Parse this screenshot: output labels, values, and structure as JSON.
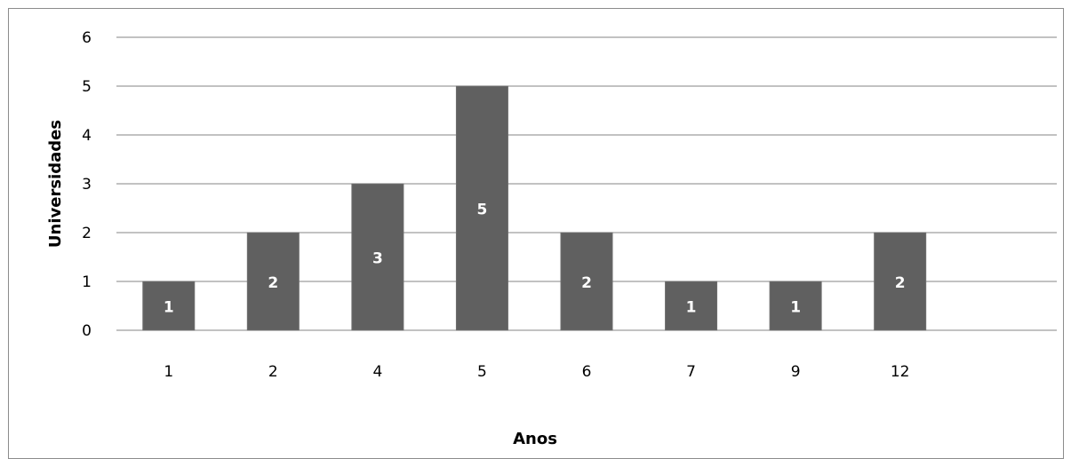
{
  "chart_data": {
    "type": "bar",
    "categories": [
      "1",
      "2",
      "4",
      "5",
      "6",
      "7",
      "9",
      "12"
    ],
    "values": [
      1,
      2,
      3,
      5,
      2,
      1,
      1,
      2
    ],
    "data_labels": [
      "1",
      "2",
      "3",
      "5",
      "2",
      "1",
      "1",
      "2"
    ],
    "title": "",
    "xlabel": "Anos",
    "ylabel": "Universidades",
    "ylim": [
      0,
      6
    ],
    "y_ticks": [
      0,
      1,
      2,
      3,
      4,
      5,
      6
    ],
    "extra_empty_slots": 1,
    "grid": true,
    "legend": "none",
    "colors": {
      "bar": "#606060",
      "bar_border": "#6e6e6e",
      "data_label": "#ffffff",
      "gridline": "#868686",
      "frame": "#8c8c8c"
    }
  }
}
